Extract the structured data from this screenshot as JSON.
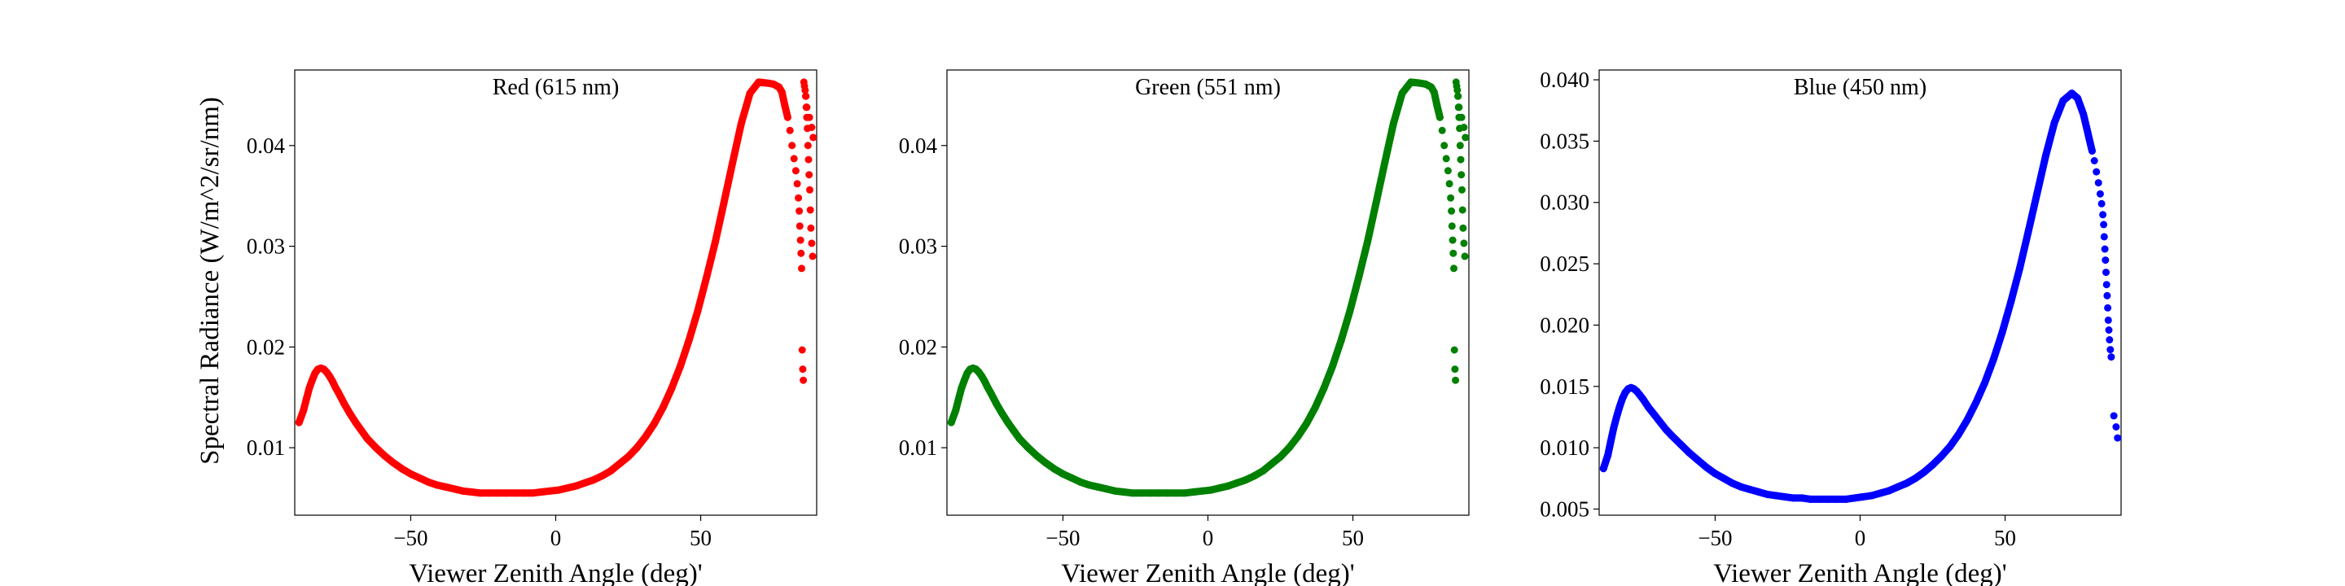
{
  "figure": {
    "ylabel": "Spectral Radiance (W/m^2/sr/nm)"
  },
  "chart_data": [
    {
      "type": "scatter",
      "title": "Red (615 nm)",
      "xlabel": "Viewer Zenith Angle (deg)'",
      "ylabel": "Spectral Radiance (W/m^2/sr/nm)",
      "color": "#ff0000",
      "xlim": [
        -90,
        90
      ],
      "ylim": [
        0.0033,
        0.0475
      ],
      "xticks": [
        -50,
        0,
        50
      ],
      "xtick_labels": [
        "−50",
        "0",
        "50"
      ],
      "yticks": [
        0.01,
        0.02,
        0.03,
        0.04
      ],
      "ytick_labels": [
        "0.01",
        "0.02",
        "0.03",
        "0.04"
      ],
      "grid": false,
      "series": [
        {
          "x": [
            -88.5,
            -87,
            -86,
            -85,
            -84,
            -83,
            -82,
            -81,
            -80,
            -79,
            -78,
            -77,
            -76,
            -75,
            -73,
            -71,
            -69,
            -67,
            -65,
            -62,
            -59,
            -56,
            -53,
            -50,
            -47,
            -44,
            -41,
            -38,
            -35,
            -32,
            -29,
            -26,
            -23,
            -20,
            -17,
            -14,
            -11,
            -8,
            -5,
            -2,
            1,
            4,
            7,
            10,
            13,
            16,
            19,
            22,
            25,
            28,
            31,
            34,
            37,
            40,
            43,
            46,
            49,
            52,
            55,
            58,
            61,
            64,
            67,
            70,
            73,
            75,
            77,
            78,
            79,
            80,
            80.8,
            81.5,
            82.2,
            82.8,
            83.3,
            83.7,
            84.0,
            84.2,
            84.4,
            84.6,
            84.8,
            85.0,
            85.2,
            85.4,
            85.6,
            85.8,
            86.0,
            86.3,
            86.6,
            87.5,
            88.3,
            88.8
          ],
          "y": [
            0.0125,
            0.0137,
            0.0148,
            0.0159,
            0.0167,
            0.0174,
            0.0178,
            0.0179,
            0.0178,
            0.0175,
            0.0171,
            0.0166,
            0.016,
            0.0155,
            0.0144,
            0.0134,
            0.0125,
            0.0117,
            0.0109,
            0.01,
            0.0092,
            0.0085,
            0.0079,
            0.0074,
            0.007,
            0.0066,
            0.0063,
            0.0061,
            0.0059,
            0.0057,
            0.0056,
            0.0055,
            0.0055,
            0.0055,
            0.0055,
            0.0055,
            0.0055,
            0.0055,
            0.0056,
            0.0057,
            0.0058,
            0.006,
            0.0062,
            0.0065,
            0.0068,
            0.0072,
            0.0077,
            0.0084,
            0.0091,
            0.01,
            0.0111,
            0.0124,
            0.014,
            0.0159,
            0.0181,
            0.0207,
            0.0236,
            0.0269,
            0.0304,
            0.0343,
            0.0383,
            0.0422,
            0.0452,
            0.0463,
            0.0462,
            0.0461,
            0.0458,
            0.0453,
            0.044,
            0.0428,
            0.0415,
            0.04,
            0.0387,
            0.0375,
            0.0362,
            0.0348,
            0.0335,
            0.032,
            0.0306,
            0.0293,
            0.0278,
            0.0197,
            0.0178,
            0.0167,
            0.0463,
            0.0459,
            0.0455,
            0.0449,
            0.0438,
            0.0428,
            0.0418,
            0.0408
          ],
          "x_tail": [
            86.2,
            86.4,
            86.6,
            86.8,
            87.0,
            87.2,
            87.4,
            87.6,
            87.8,
            88.0,
            88.3,
            88.6
          ],
          "y_tail": [
            0.0449,
            0.0438,
            0.0428,
            0.0417,
            0.04,
            0.0386,
            0.0371,
            0.0356,
            0.0336,
            0.0318,
            0.0303,
            0.029
          ]
        }
      ]
    },
    {
      "type": "scatter",
      "title": "Green (551 nm)",
      "xlabel": "Viewer Zenith Angle (deg)'",
      "ylabel": "",
      "color": "#008000",
      "xlim": [
        -90,
        90
      ],
      "ylim": [
        0.0033,
        0.0475
      ],
      "xticks": [
        -50,
        0,
        50
      ],
      "xtick_labels": [
        "−50",
        "0",
        "50"
      ],
      "yticks": [
        0.01,
        0.02,
        0.03,
        0.04
      ],
      "ytick_labels": [
        "0.01",
        "0.02",
        "0.03",
        "0.04"
      ],
      "grid": false,
      "series": [
        {
          "x": [
            -88.5,
            -87,
            -86,
            -85,
            -84,
            -83,
            -82,
            -81,
            -80,
            -79,
            -78,
            -77,
            -76,
            -75,
            -73,
            -71,
            -69,
            -67,
            -65,
            -62,
            -59,
            -56,
            -53,
            -50,
            -47,
            -44,
            -41,
            -38,
            -35,
            -32,
            -29,
            -26,
            -23,
            -20,
            -17,
            -14,
            -11,
            -8,
            -5,
            -2,
            1,
            4,
            7,
            10,
            13,
            16,
            19,
            22,
            25,
            28,
            31,
            34,
            37,
            40,
            43,
            46,
            49,
            52,
            55,
            58,
            61,
            64,
            67,
            70,
            73,
            75,
            77,
            78,
            79,
            80,
            80.8,
            81.5,
            82.2,
            82.8,
            83.3,
            83.7,
            84.0,
            84.2,
            84.4,
            84.6,
            84.8,
            85.0,
            85.2,
            85.4,
            85.6,
            85.8,
            86.0,
            86.3,
            86.6,
            87.5,
            88.3,
            88.8
          ],
          "y": [
            0.0125,
            0.0137,
            0.0148,
            0.0159,
            0.0167,
            0.0174,
            0.0178,
            0.0179,
            0.0178,
            0.0175,
            0.0171,
            0.0166,
            0.016,
            0.0155,
            0.0144,
            0.0134,
            0.0125,
            0.0117,
            0.0109,
            0.01,
            0.0092,
            0.0085,
            0.0079,
            0.0074,
            0.007,
            0.0066,
            0.0063,
            0.0061,
            0.0059,
            0.0057,
            0.0056,
            0.0055,
            0.0055,
            0.0055,
            0.0055,
            0.0055,
            0.0055,
            0.0055,
            0.0056,
            0.0057,
            0.0058,
            0.006,
            0.0062,
            0.0065,
            0.0068,
            0.0072,
            0.0077,
            0.0084,
            0.0091,
            0.01,
            0.0111,
            0.0124,
            0.014,
            0.0159,
            0.0181,
            0.0207,
            0.0236,
            0.0269,
            0.0304,
            0.0343,
            0.0383,
            0.0422,
            0.0452,
            0.0463,
            0.0462,
            0.0461,
            0.0458,
            0.0453,
            0.044,
            0.0428,
            0.0415,
            0.04,
            0.0387,
            0.0375,
            0.0362,
            0.0348,
            0.0335,
            0.032,
            0.0306,
            0.0293,
            0.0278,
            0.0197,
            0.0178,
            0.0167,
            0.0463,
            0.0459,
            0.0455,
            0.0449,
            0.0438,
            0.0428,
            0.0418,
            0.0408
          ],
          "x_tail": [
            86.2,
            86.4,
            86.6,
            86.8,
            87.0,
            87.2,
            87.4,
            87.6,
            87.8,
            88.0,
            88.3,
            88.6
          ],
          "y_tail": [
            0.0449,
            0.0438,
            0.0428,
            0.0417,
            0.04,
            0.0386,
            0.0371,
            0.0356,
            0.0336,
            0.0318,
            0.0303,
            0.029
          ]
        }
      ]
    },
    {
      "type": "scatter",
      "title": "Blue (450 nm)",
      "xlabel": "Viewer Zenith Angle (deg)'",
      "ylabel": "",
      "color": "#0000ff",
      "xlim": [
        -90,
        90
      ],
      "ylim": [
        0.0045,
        0.0408
      ],
      "xticks": [
        -50,
        0,
        50
      ],
      "xtick_labels": [
        "−50",
        "0",
        "50"
      ],
      "yticks": [
        0.005,
        0.01,
        0.015,
        0.02,
        0.025,
        0.03,
        0.035,
        0.04
      ],
      "ytick_labels": [
        "0.005",
        "0.010",
        "0.015",
        "0.020",
        "0.025",
        "0.030",
        "0.035",
        "0.040"
      ],
      "grid": false,
      "series": [
        {
          "x": [
            -88.5,
            -87,
            -86,
            -85,
            -84,
            -83,
            -82,
            -81,
            -80,
            -79,
            -78,
            -77,
            -76,
            -75,
            -73,
            -71,
            -69,
            -67,
            -65,
            -62,
            -59,
            -56,
            -53,
            -50,
            -47,
            -44,
            -41,
            -38,
            -35,
            -32,
            -29,
            -26,
            -23,
            -20,
            -17,
            -14,
            -11,
            -8,
            -5,
            -2,
            1,
            4,
            7,
            10,
            13,
            16,
            19,
            22,
            25,
            28,
            31,
            34,
            37,
            40,
            43,
            46,
            49,
            52,
            55,
            58,
            61,
            64,
            67,
            70,
            73,
            75,
            77,
            78,
            79,
            80,
            80.8,
            81.5,
            82.2,
            82.8,
            83.3,
            83.7,
            84.0,
            84.2,
            84.4,
            84.6,
            84.8,
            85.0,
            85.2,
            85.4,
            85.6,
            85.8,
            86.0,
            86.3,
            86.6,
            87.5,
            88.3,
            88.8
          ],
          "y": [
            0.0083,
            0.0094,
            0.0105,
            0.0116,
            0.0125,
            0.0133,
            0.014,
            0.0145,
            0.0148,
            0.0149,
            0.0148,
            0.0146,
            0.0143,
            0.014,
            0.0133,
            0.0127,
            0.0121,
            0.0115,
            0.011,
            0.0103,
            0.0096,
            0.009,
            0.0084,
            0.0079,
            0.0075,
            0.0071,
            0.0068,
            0.0066,
            0.0064,
            0.0062,
            0.0061,
            0.006,
            0.0059,
            0.0059,
            0.0058,
            0.0058,
            0.0058,
            0.0058,
            0.0058,
            0.0059,
            0.006,
            0.0061,
            0.0063,
            0.0065,
            0.0068,
            0.0071,
            0.0075,
            0.008,
            0.0086,
            0.0093,
            0.0101,
            0.0111,
            0.0123,
            0.0137,
            0.0153,
            0.0172,
            0.0194,
            0.0219,
            0.0246,
            0.0276,
            0.0307,
            0.0338,
            0.0365,
            0.0383,
            0.0389,
            0.0385,
            0.0372,
            0.0362,
            0.0352,
            0.0342,
            0.0334,
            0.0325,
            0.0316,
            0.0307,
            0.0299,
            0.029,
            0.0282,
            0.0272,
            0.0262,
            0.0253,
            0.0243,
            0.0233,
            0.0224,
            0.0214,
            0.0204,
            0.0196,
            0.0188,
            0.018,
            0.0174,
            0.0126,
            0.0117,
            0.0108
          ],
          "x_tail": [],
          "y_tail": []
        }
      ]
    }
  ]
}
